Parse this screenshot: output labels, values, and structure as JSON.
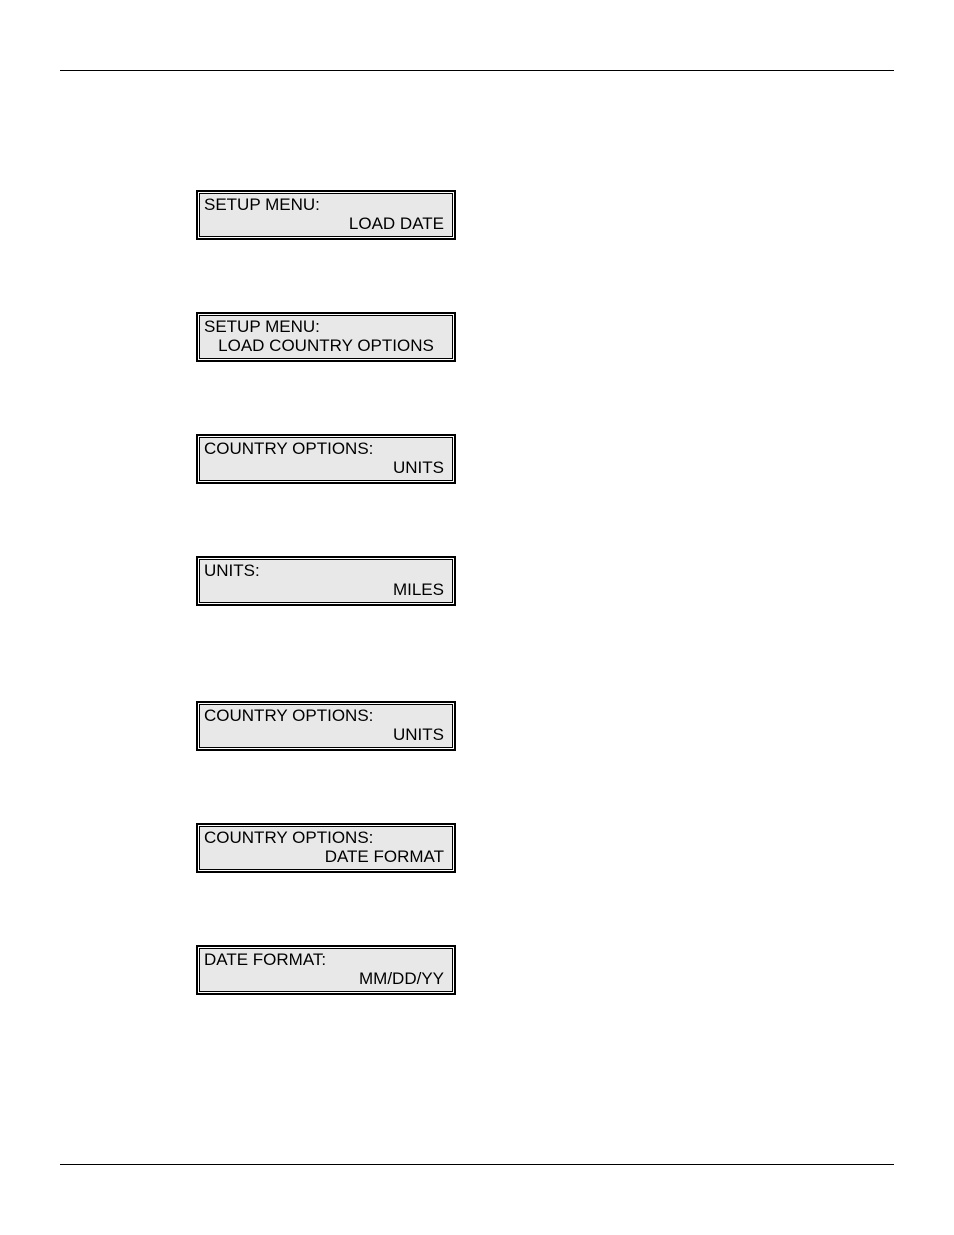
{
  "page": {
    "background_color": "#ffffff",
    "rule_color": "#000000",
    "panel_bg": "#e8e8e8",
    "panel_border": "#000000",
    "font_color": "#000000",
    "font_size_pt": 12
  },
  "panels": [
    {
      "line1": "SETUP MENU:",
      "line2": "LOAD DATE",
      "align": "right"
    },
    {
      "line1": "SETUP MENU:",
      "line2": "LOAD COUNTRY OPTIONS",
      "align": "center"
    },
    {
      "line1": "COUNTRY OPTIONS:",
      "line2": "UNITS",
      "align": "right"
    },
    {
      "line1": "UNITS:",
      "line2": "MILES",
      "align": "right"
    },
    {
      "line1": "COUNTRY OPTIONS:",
      "line2": "UNITS",
      "align": "right"
    },
    {
      "line1": "COUNTRY OPTIONS:",
      "line2": "DATE FORMAT",
      "align": "right"
    },
    {
      "line1": "DATE FORMAT:",
      "line2": "MM/DD/YY",
      "align": "right"
    }
  ]
}
